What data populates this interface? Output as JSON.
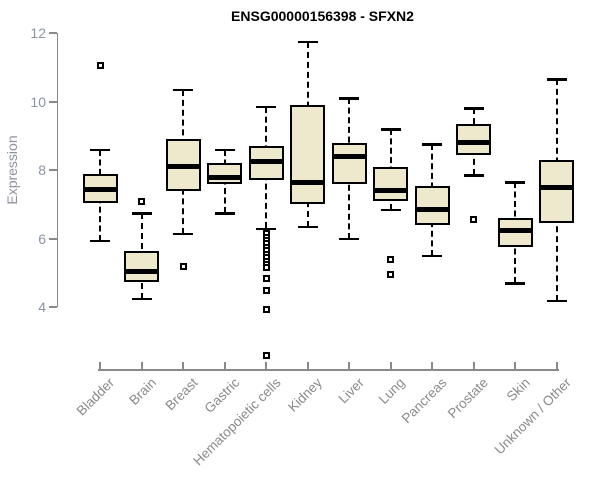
{
  "title": "ENSG00000156398 - SFXN2",
  "colors": {
    "box_fill": "#EEE8CD",
    "box_border": "#000000",
    "median": "#000000",
    "axis": "#8a8a8a",
    "tick_label": "#8d94a2",
    "title": "#000000",
    "background": "#ffffff"
  },
  "chart_data": {
    "type": "boxplot",
    "title": "ENSG00000156398 - SFXN2",
    "xlabel": "",
    "ylabel": "Expression",
    "ylim": [
      4,
      12
    ],
    "yticks": [
      4,
      6,
      8,
      10,
      12
    ],
    "grid": false,
    "legend": false,
    "categories": [
      "Bladder",
      "Brain",
      "Breast",
      "Gastric",
      "Hematopoietic cells",
      "Kidney",
      "Liver",
      "Lung",
      "Pancreas",
      "Prostate",
      "Skin",
      "Unknown / Other"
    ],
    "series": [
      {
        "name": "Bladder",
        "whisker_low": 5.95,
        "q1": 7.05,
        "median": 7.45,
        "q3": 7.9,
        "whisker_high": 8.6,
        "outliers": [
          11.05
        ]
      },
      {
        "name": "Brain",
        "whisker_low": 4.25,
        "q1": 4.75,
        "median": 5.05,
        "q3": 5.65,
        "whisker_high": 6.75,
        "outliers": [
          7.1
        ]
      },
      {
        "name": "Breast",
        "whisker_low": 6.15,
        "q1": 7.4,
        "median": 8.1,
        "q3": 8.9,
        "whisker_high": 10.35,
        "outliers": [
          5.2
        ]
      },
      {
        "name": "Gastric",
        "whisker_low": 6.75,
        "q1": 7.6,
        "median": 7.8,
        "q3": 8.2,
        "whisker_high": 8.6,
        "outliers": []
      },
      {
        "name": "Hematopoietic cells",
        "whisker_low": 6.3,
        "q1": 7.7,
        "median": 8.25,
        "q3": 8.7,
        "whisker_high": 9.85,
        "outliers": [
          6.15,
          6.05,
          5.95,
          5.85,
          5.75,
          5.65,
          5.55,
          5.45,
          5.35,
          5.25,
          5.15,
          4.85,
          4.5,
          3.95,
          2.6
        ]
      },
      {
        "name": "Kidney",
        "whisker_low": 6.35,
        "q1": 7.0,
        "median": 7.65,
        "q3": 9.9,
        "whisker_high": 11.75,
        "outliers": []
      },
      {
        "name": "Liver",
        "whisker_low": 6.0,
        "q1": 7.6,
        "median": 8.4,
        "q3": 8.8,
        "whisker_high": 10.1,
        "outliers": []
      },
      {
        "name": "Lung",
        "whisker_low": 6.85,
        "q1": 7.1,
        "median": 7.4,
        "q3": 8.1,
        "whisker_high": 9.2,
        "outliers": [
          5.4,
          4.95
        ]
      },
      {
        "name": "Pancreas",
        "whisker_low": 5.5,
        "q1": 6.4,
        "median": 6.85,
        "q3": 7.55,
        "whisker_high": 8.75,
        "outliers": []
      },
      {
        "name": "Prostate",
        "whisker_low": 7.85,
        "q1": 8.45,
        "median": 8.8,
        "q3": 9.35,
        "whisker_high": 9.8,
        "outliers": [
          6.55
        ]
      },
      {
        "name": "Skin",
        "whisker_low": 4.7,
        "q1": 5.75,
        "median": 6.25,
        "q3": 6.6,
        "whisker_high": 7.65,
        "outliers": []
      },
      {
        "name": "Unknown / Other",
        "whisker_low": 4.2,
        "q1": 6.45,
        "median": 7.5,
        "q3": 8.3,
        "whisker_high": 10.65,
        "outliers": []
      }
    ]
  }
}
